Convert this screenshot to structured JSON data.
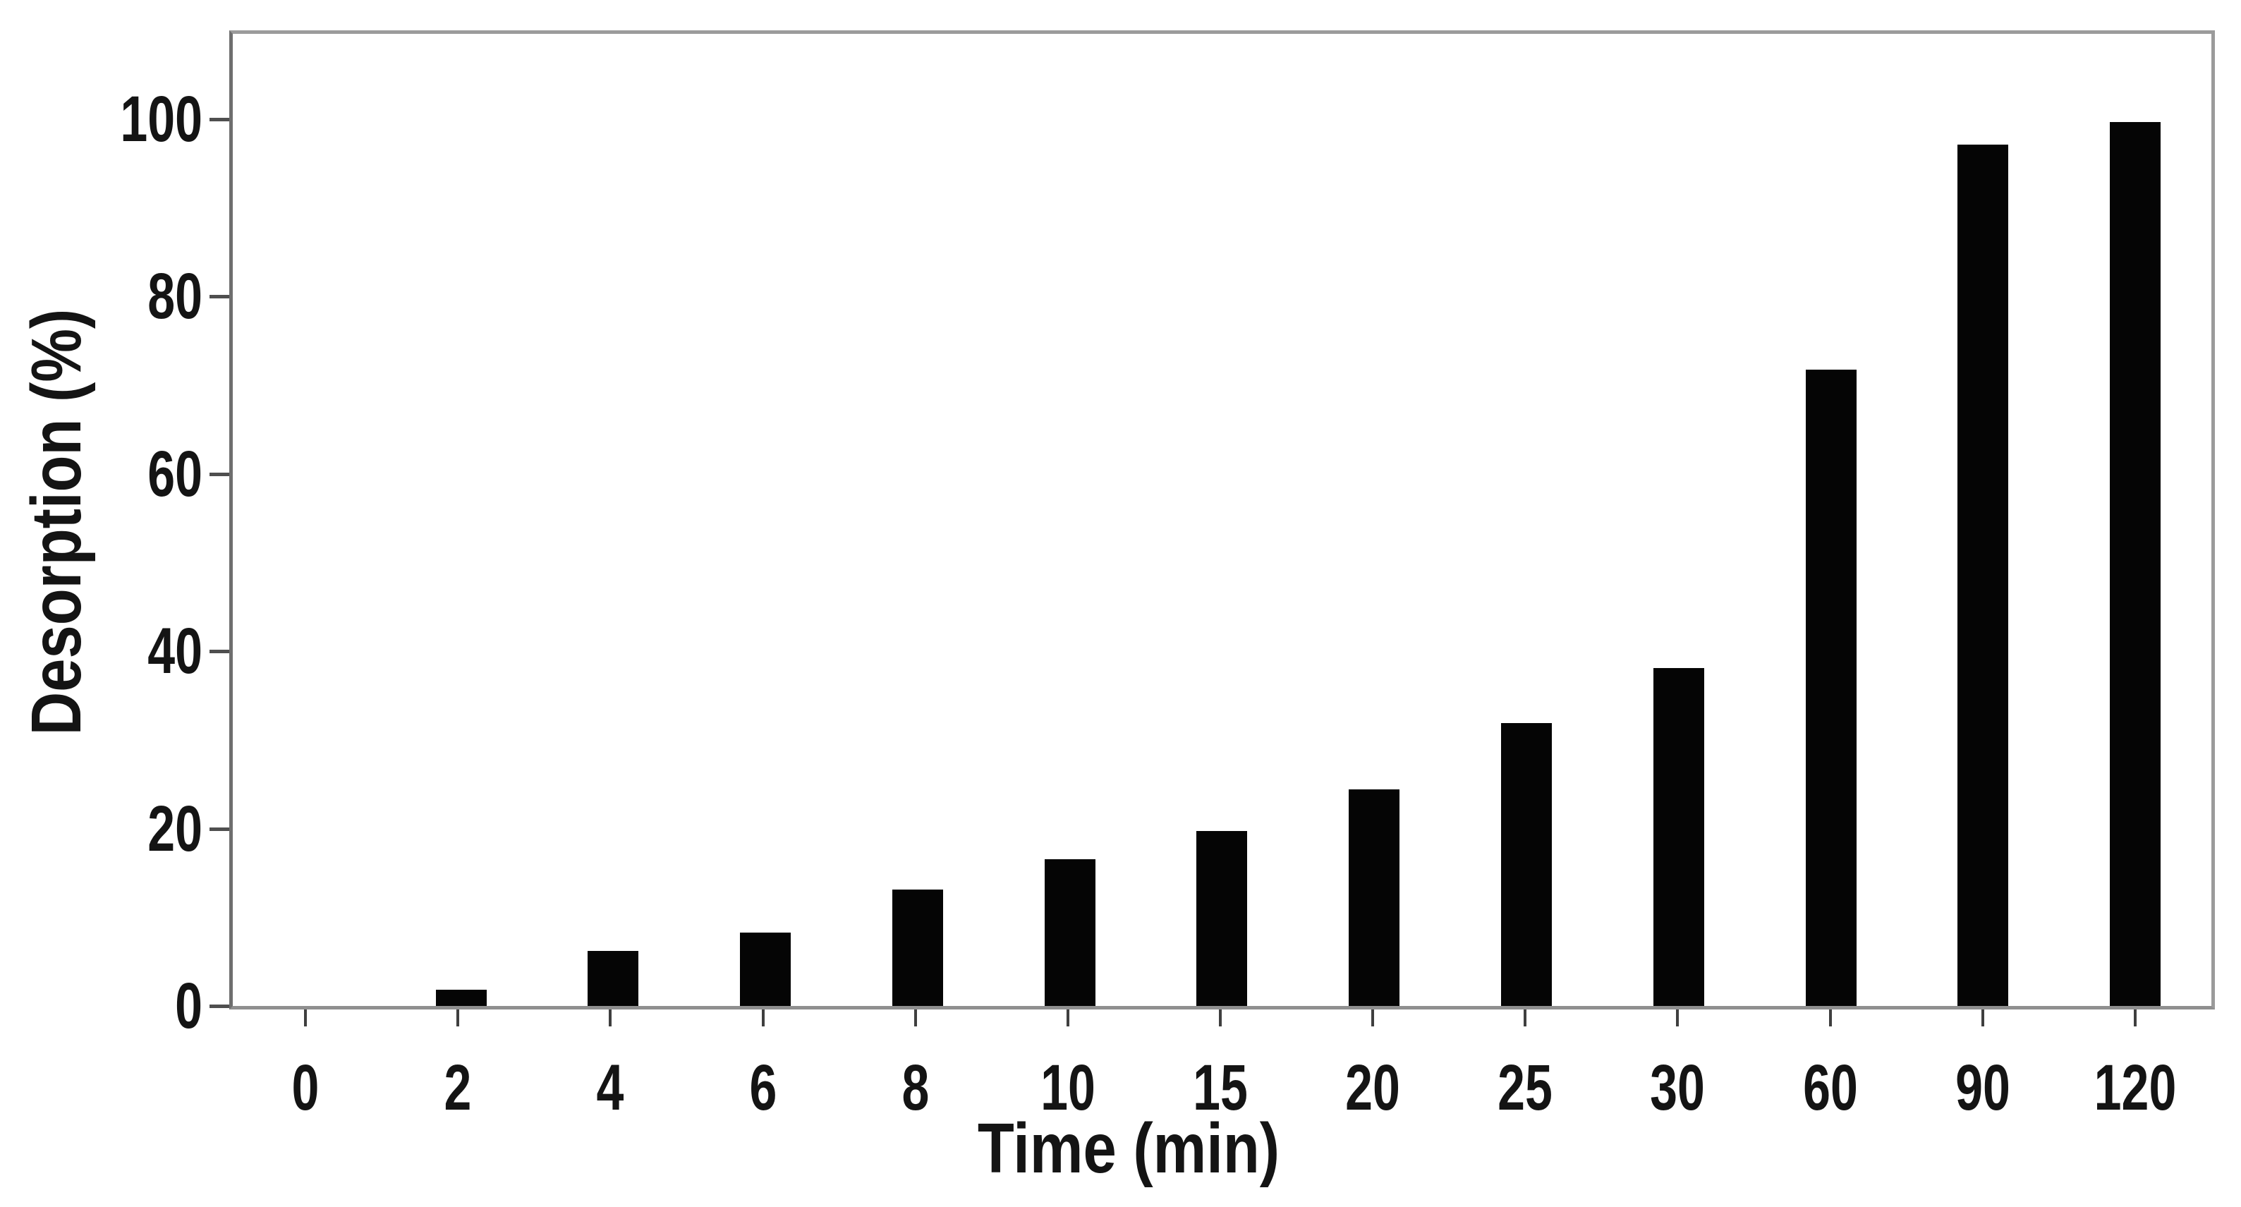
{
  "chart_data": {
    "type": "bar",
    "title": "",
    "xlabel": "Time (min)",
    "ylabel": "Desorption (%)",
    "categories": [
      "0",
      "2",
      "4",
      "6",
      "8",
      "10",
      "15",
      "20",
      "25",
      "30",
      "60",
      "90",
      "120"
    ],
    "values": [
      0,
      1.8,
      6.2,
      8.3,
      13.2,
      16.6,
      19.8,
      24.5,
      32,
      38.2,
      72,
      97.5,
      100
    ],
    "y_ticks": [
      0,
      20,
      40,
      60,
      80,
      100
    ],
    "ylim": [
      0,
      110
    ],
    "grid": false,
    "legend": null,
    "bar_color": "#050505",
    "axis_color": "#8f8f8f",
    "text_color": "#141414"
  }
}
